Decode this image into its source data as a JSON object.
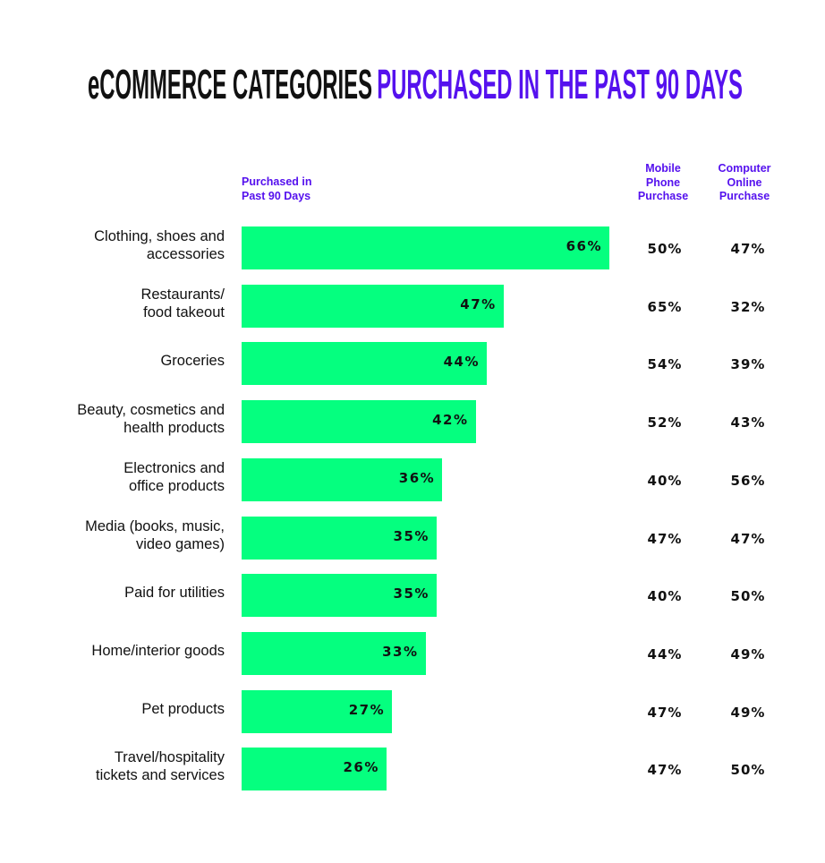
{
  "chart_data": {
    "type": "bar",
    "orientation": "horizontal",
    "title": {
      "part1": "eCOMMERCE CATEGORIES",
      "part2": "PURCHASED IN THE PAST 90 DAYS"
    },
    "column_headers": {
      "bar": "Purchased in Past 90 Days",
      "mobile": "Mobile Phone Purchase",
      "computer": "Computer Online Purchase"
    },
    "xlim": [
      0,
      100
    ],
    "grid": false,
    "colors": {
      "bar": "#05ff7f",
      "accent": "#5511ee",
      "text": "#111111"
    },
    "categories": [
      {
        "label": [
          "Clothing, shoes and",
          "accessories"
        ],
        "value": 66,
        "mobile": "50%",
        "computer": "47%"
      },
      {
        "label": [
          "Restaurants/",
          "food takeout"
        ],
        "value": 47,
        "mobile": "65%",
        "computer": "32%"
      },
      {
        "label": [
          "Groceries"
        ],
        "value": 44,
        "mobile": "54%",
        "computer": "39%"
      },
      {
        "label": [
          "Beauty, cosmetics and",
          "health products"
        ],
        "value": 42,
        "mobile": "52%",
        "computer": "43%"
      },
      {
        "label": [
          "Electronics and",
          "office products"
        ],
        "value": 36,
        "mobile": "40%",
        "computer": "56%"
      },
      {
        "label": [
          "Media (books, music,",
          "video games)"
        ],
        "value": 35,
        "mobile": "47%",
        "computer": "47%"
      },
      {
        "label": [
          "Paid for utilities"
        ],
        "value": 35,
        "mobile": "40%",
        "computer": "50%"
      },
      {
        "label": [
          "Home/interior goods"
        ],
        "value": 33,
        "mobile": "44%",
        "computer": "49%"
      },
      {
        "label": [
          "Pet products"
        ],
        "value": 27,
        "mobile": "47%",
        "computer": "49%"
      },
      {
        "label": [
          "Travel/hospitality",
          "tickets and services"
        ],
        "value": 26,
        "mobile": "47%",
        "computer": "50%"
      }
    ]
  }
}
